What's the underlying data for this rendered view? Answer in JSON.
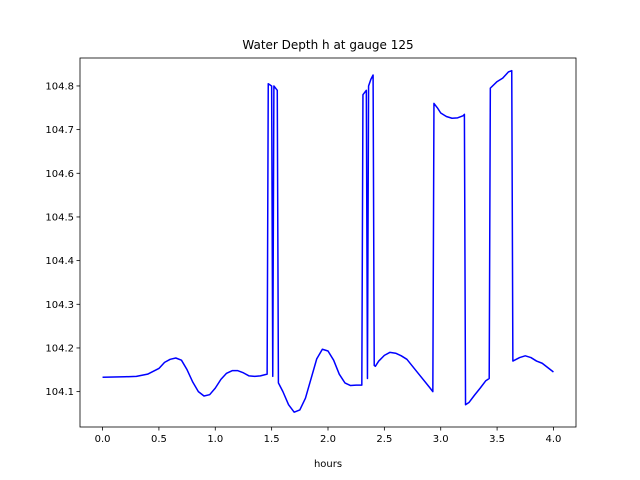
{
  "chart_data": {
    "type": "line",
    "title": "Water Depth h at gauge 125",
    "xlabel": "hours",
    "ylabel": "",
    "xlim": [
      -0.2,
      4.2
    ],
    "ylim": [
      104.019,
      104.864
    ],
    "xticks": [
      0.0,
      0.5,
      1.0,
      1.5,
      2.0,
      2.5,
      3.0,
      3.5,
      4.0
    ],
    "xtick_labels": [
      "0.0",
      "0.5",
      "1.0",
      "1.5",
      "2.0",
      "2.5",
      "3.0",
      "3.5",
      "4.0"
    ],
    "yticks": [
      104.1,
      104.2,
      104.3,
      104.4,
      104.5,
      104.6,
      104.7,
      104.8
    ],
    "ytick_labels": [
      "104.1",
      "104.2",
      "104.3",
      "104.4",
      "104.5",
      "104.6",
      "104.7",
      "104.8"
    ],
    "grid": false,
    "series": [
      {
        "name": "",
        "color": "#0000ff",
        "x": [
          0.0,
          0.2,
          0.3,
          0.4,
          0.5,
          0.55,
          0.6,
          0.65,
          0.7,
          0.75,
          0.8,
          0.85,
          0.9,
          0.95,
          1.0,
          1.05,
          1.1,
          1.15,
          1.2,
          1.25,
          1.3,
          1.35,
          1.4,
          1.46,
          1.47,
          1.5,
          1.51,
          1.52,
          1.55,
          1.56,
          1.6,
          1.65,
          1.7,
          1.75,
          1.8,
          1.85,
          1.9,
          1.95,
          2.0,
          2.05,
          2.1,
          2.15,
          2.2,
          2.25,
          2.3,
          2.31,
          2.34,
          2.35,
          2.36,
          2.38,
          2.4,
          2.41,
          2.42,
          2.45,
          2.5,
          2.55,
          2.6,
          2.65,
          2.7,
          2.8,
          2.9,
          2.93,
          2.94,
          2.97,
          3.0,
          3.05,
          3.1,
          3.15,
          3.2,
          3.21,
          3.22,
          3.25,
          3.3,
          3.35,
          3.4,
          3.43,
          3.44,
          3.5,
          3.55,
          3.6,
          3.63,
          3.64,
          3.7,
          3.75,
          3.8,
          3.85,
          3.9,
          3.95,
          4.0
        ],
        "y": [
          104.133,
          104.134,
          104.135,
          104.14,
          104.153,
          104.167,
          104.174,
          104.177,
          104.172,
          104.15,
          104.122,
          104.1,
          104.09,
          104.093,
          104.108,
          104.128,
          104.142,
          104.148,
          104.148,
          104.143,
          104.136,
          104.135,
          104.136,
          104.14,
          104.805,
          104.8,
          104.135,
          104.8,
          104.79,
          104.12,
          104.1,
          104.07,
          104.053,
          104.058,
          104.085,
          104.13,
          104.175,
          104.197,
          104.193,
          104.172,
          104.14,
          104.12,
          104.114,
          104.115,
          104.115,
          104.78,
          104.79,
          104.13,
          104.8,
          104.815,
          104.825,
          104.16,
          104.158,
          104.17,
          104.183,
          104.19,
          104.188,
          104.182,
          104.174,
          104.142,
          104.11,
          104.1,
          104.76,
          104.75,
          104.738,
          104.73,
          104.726,
          104.727,
          104.732,
          104.735,
          104.07,
          104.075,
          104.092,
          104.108,
          104.125,
          104.13,
          104.795,
          104.81,
          104.818,
          104.832,
          104.835,
          104.17,
          104.178,
          104.182,
          104.178,
          104.17,
          104.165,
          104.155,
          104.145
        ]
      }
    ]
  }
}
